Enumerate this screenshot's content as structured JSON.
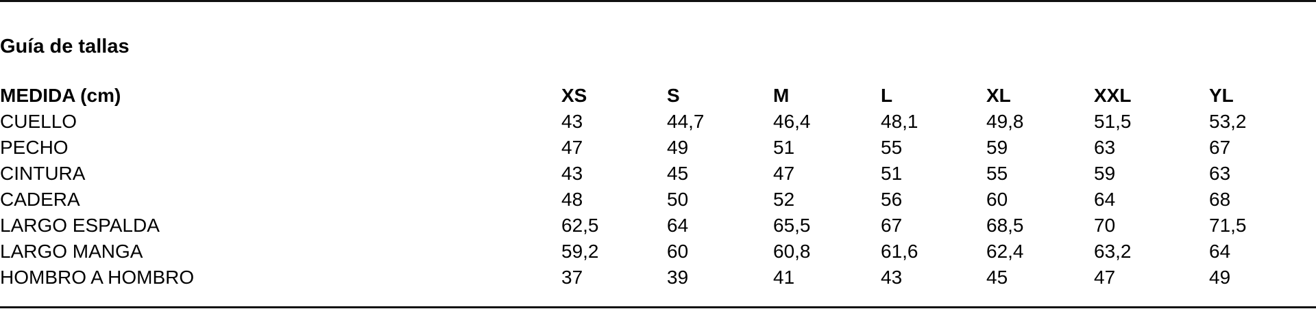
{
  "title": "Guía de tallas",
  "table": {
    "headers": [
      "MEDIDA (cm)",
      "XS",
      "S",
      "M",
      "L",
      "XL",
      "XXL",
      "YL"
    ],
    "rows": [
      [
        "CUELLO",
        "43",
        "44,7",
        "46,4",
        "48,1",
        "49,8",
        "51,5",
        "53,2"
      ],
      [
        "PECHO",
        "47",
        "49",
        "51",
        "55",
        "59",
        "63",
        "67"
      ],
      [
        "CINTURA",
        "43",
        "45",
        "47",
        "51",
        "55",
        "59",
        "63"
      ],
      [
        "CADERA",
        "48",
        "50",
        "52",
        "56",
        "60",
        "64",
        "68"
      ],
      [
        "LARGO ESPALDA",
        "62,5",
        "64",
        "65,5",
        "67",
        "68,5",
        "70",
        "71,5"
      ],
      [
        "LARGO MANGA",
        "59,2",
        "60",
        "60,8",
        "61,6",
        "62,4",
        "63,2",
        "64"
      ],
      [
        "HOMBRO A HOMBRO",
        "37",
        "39",
        "41",
        "43",
        "45",
        "47",
        "49"
      ]
    ]
  }
}
